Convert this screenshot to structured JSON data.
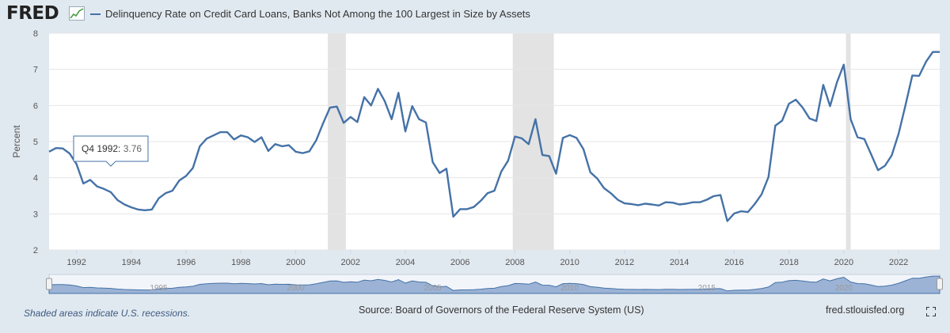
{
  "header": {
    "logo_text": "FRED",
    "logo_icon": "chart-line-icon"
  },
  "footer": {
    "recession_note": "Shaded areas indicate U.S. recessions.",
    "source": "Source: Board of Governors of the Federal Reserve System (US)",
    "site": "fred.stlouisfed.org",
    "fullscreen_icon": "fullscreen-icon"
  },
  "tooltip": {
    "label": "Q4 1992:",
    "value": "3.76",
    "x": 1992.875
  },
  "navigator": {
    "labels": [
      "1995",
      "2000",
      "2005",
      "2010",
      "2015",
      "2020"
    ]
  },
  "colors": {
    "line": "#4572a7",
    "recession": "#e3e3e3",
    "navigator_fill": "#7f9cc8",
    "background": "#e1e9f0",
    "plot": "#ffffff"
  },
  "chart_data": {
    "type": "line",
    "title": "",
    "xlabel": "",
    "ylabel": "Percent",
    "xlim": [
      1991.0,
      2023.5
    ],
    "ylim": [
      2,
      8
    ],
    "yticks": [
      2,
      3,
      4,
      5,
      6,
      7,
      8
    ],
    "xticks": [
      "1992",
      "1994",
      "1996",
      "1998",
      "2000",
      "2002",
      "2004",
      "2006",
      "2008",
      "2010",
      "2012",
      "2014",
      "2016",
      "2018",
      "2020",
      "2022"
    ],
    "grid": true,
    "legend_position": "top-left",
    "recessions": [
      [
        2001.17,
        2001.83
      ],
      [
        2007.92,
        2009.42
      ],
      [
        2020.08,
        2020.25
      ]
    ],
    "series": [
      {
        "name": "Delinquency Rate on Credit Card Loans, Banks Not Among the 100 Largest in Size by Assets",
        "color": "#4572a7",
        "x": [
          1991.0,
          1991.25,
          1991.5,
          1991.75,
          1992.0,
          1992.25,
          1992.5,
          1992.75,
          1993.0,
          1993.25,
          1993.5,
          1993.75,
          1994.0,
          1994.25,
          1994.5,
          1994.75,
          1995.0,
          1995.25,
          1995.5,
          1995.75,
          1996.0,
          1996.25,
          1996.5,
          1996.75,
          1997.0,
          1997.25,
          1997.5,
          1997.75,
          1998.0,
          1998.25,
          1998.5,
          1998.75,
          1999.0,
          1999.25,
          1999.5,
          1999.75,
          2000.0,
          2000.25,
          2000.5,
          2000.75,
          2001.0,
          2001.25,
          2001.5,
          2001.75,
          2002.0,
          2002.25,
          2002.5,
          2002.75,
          2003.0,
          2003.25,
          2003.5,
          2003.75,
          2004.0,
          2004.25,
          2004.5,
          2004.75,
          2005.0,
          2005.25,
          2005.5,
          2005.75,
          2006.0,
          2006.25,
          2006.5,
          2006.75,
          2007.0,
          2007.25,
          2007.5,
          2007.75,
          2008.0,
          2008.25,
          2008.5,
          2008.75,
          2009.0,
          2009.25,
          2009.5,
          2009.75,
          2010.0,
          2010.25,
          2010.5,
          2010.75,
          2011.0,
          2011.25,
          2011.5,
          2011.75,
          2012.0,
          2012.25,
          2012.5,
          2012.75,
          2013.0,
          2013.25,
          2013.5,
          2013.75,
          2014.0,
          2014.25,
          2014.5,
          2014.75,
          2015.0,
          2015.25,
          2015.5,
          2015.75,
          2016.0,
          2016.25,
          2016.5,
          2016.75,
          2017.0,
          2017.25,
          2017.5,
          2017.75,
          2018.0,
          2018.25,
          2018.5,
          2018.75,
          2019.0,
          2019.25,
          2019.5,
          2019.75,
          2020.0,
          2020.25,
          2020.5,
          2020.75,
          2021.0,
          2021.25,
          2021.5,
          2021.75,
          2022.0,
          2022.25,
          2022.5,
          2022.75,
          2023.0,
          2023.25,
          2023.5
        ],
        "values": [
          4.72,
          4.82,
          4.81,
          4.67,
          4.38,
          3.84,
          3.94,
          3.76,
          3.69,
          3.6,
          3.38,
          3.26,
          3.18,
          3.12,
          3.1,
          3.12,
          3.43,
          3.57,
          3.64,
          3.92,
          4.05,
          4.27,
          4.87,
          5.08,
          5.17,
          5.26,
          5.26,
          5.06,
          5.17,
          5.12,
          4.99,
          5.12,
          4.74,
          4.93,
          4.87,
          4.9,
          4.72,
          4.68,
          4.73,
          5.04,
          5.51,
          5.94,
          5.97,
          5.52,
          5.68,
          5.54,
          6.23,
          6.0,
          6.46,
          6.12,
          5.62,
          6.35,
          5.28,
          5.98,
          5.62,
          5.53,
          4.43,
          4.13,
          4.25,
          2.92,
          3.13,
          3.13,
          3.19,
          3.36,
          3.57,
          3.64,
          4.17,
          4.47,
          5.14,
          5.09,
          4.93,
          5.62,
          4.63,
          4.6,
          4.11,
          5.1,
          5.18,
          5.1,
          4.79,
          4.15,
          3.98,
          3.71,
          3.57,
          3.39,
          3.29,
          3.27,
          3.24,
          3.28,
          3.26,
          3.23,
          3.32,
          3.31,
          3.26,
          3.28,
          3.32,
          3.32,
          3.39,
          3.49,
          3.52,
          2.8,
          3.01,
          3.07,
          3.05,
          3.27,
          3.54,
          4.02,
          5.44,
          5.58,
          6.05,
          6.16,
          5.94,
          5.64,
          5.57,
          6.57,
          5.98,
          6.64,
          7.13,
          5.62,
          5.12,
          5.07,
          4.64,
          4.21,
          4.33,
          4.62,
          5.22,
          6.0,
          6.83,
          6.82,
          7.21,
          7.48,
          7.48
        ]
      }
    ]
  }
}
